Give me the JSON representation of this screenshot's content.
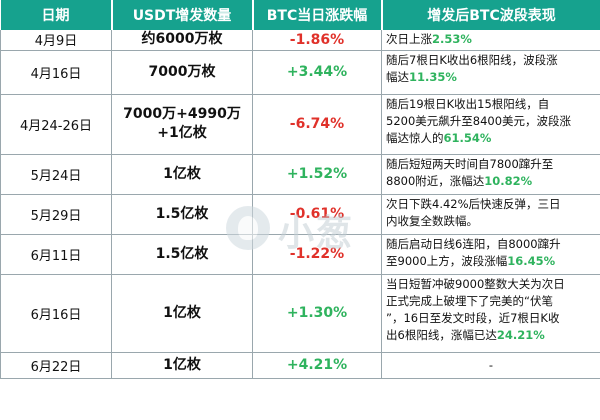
{
  "headers": [
    "日期",
    "USDT增发数量",
    "BTC当日涨跌幅",
    "增发后BTC波段表现"
  ],
  "rows": [
    {
      "date": "4月9日",
      "amount": "约6000万枚",
      "change": "-1.86%",
      "dir": "neg",
      "desc": [
        [
          "次日上涨",
          "2.53%"
        ]
      ]
    },
    {
      "date": "4月16日",
      "amount": "7000万枚",
      "change": "+3.44%",
      "dir": "pos",
      "desc": [
        [
          "随后7根日K收出6根阳线，波段涨",
          ""
        ],
        [
          "幅达",
          "11.35%"
        ]
      ]
    },
    {
      "date": "4月24-26日",
      "amount": "7000万+4990万\n+1亿枚",
      "change": "-6.74%",
      "dir": "neg",
      "desc": [
        [
          "随后19根日K收出15根阳线，自",
          ""
        ],
        [
          "5200美元飙升至8400美元，波段涨",
          ""
        ],
        [
          "幅达惊人的",
          "61.54%"
        ]
      ]
    },
    {
      "date": "5月24日",
      "amount": "1亿枚",
      "change": "+1.52%",
      "dir": "pos",
      "desc": [
        [
          "随后短短两天时间自7800蹿升至",
          ""
        ],
        [
          "8800附近，涨幅达",
          "10.82%"
        ]
      ]
    },
    {
      "date": "5月29日",
      "amount": "1.5亿枚",
      "change": "-0.61%",
      "dir": "neg",
      "desc": [
        [
          "次日下跌4.42%后快速反弹，三日",
          ""
        ],
        [
          "内收复全数跌幅。",
          ""
        ]
      ]
    },
    {
      "date": "6月11日",
      "amount": "1.5亿枚",
      "change": "-1.22%",
      "dir": "neg",
      "desc": [
        [
          "随后启动日线6连阳，自8000蹿升",
          ""
        ],
        [
          "至9000上方，波段涨幅",
          "16.45%"
        ]
      ]
    },
    {
      "date": "6月16日",
      "amount": "1亿枚",
      "change": "+1.30%",
      "dir": "pos",
      "desc": [
        [
          "当日短暂冲破9000整数大关为次日",
          ""
        ],
        [
          "正式完成上破埋下了完美的“伏笔",
          ""
        ],
        [
          "”，16日至发文时段，近7根日K收",
          ""
        ],
        [
          "出6根阳线，涨幅已达",
          "24.21%"
        ]
      ]
    },
    {
      "date": "6月22日",
      "amount": "1亿枚",
      "change": "+4.21%",
      "dir": "pos",
      "desc": [
        [
          "-",
          ""
        ]
      ]
    }
  ],
  "watermark": {
    "text": "小葱",
    "logo_icon": "scallion-logo-icon"
  },
  "colors": {
    "header_bg": "#16a28e",
    "negative": "#e0312a",
    "positive": "#2fb35e"
  }
}
